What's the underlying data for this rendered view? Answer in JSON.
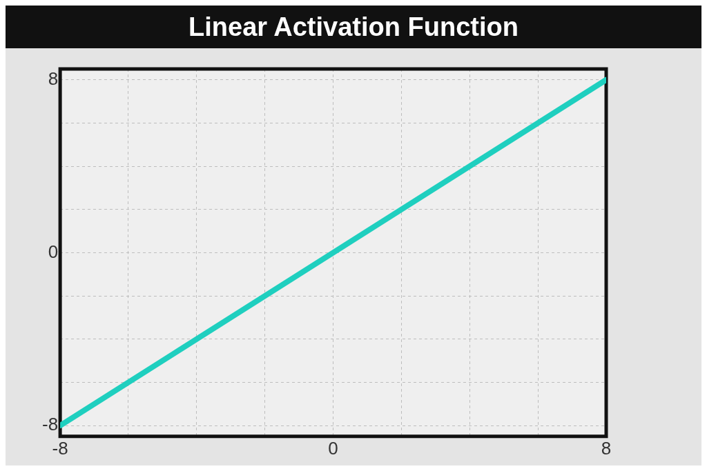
{
  "chart_data": {
    "type": "line",
    "title": "Linear Activation Function",
    "x": [
      -8,
      8
    ],
    "series": [
      {
        "color": "#1fcfbf",
        "values": [
          -8,
          8
        ]
      }
    ],
    "xlim": [
      -8,
      8
    ],
    "ylim": [
      -8.5,
      8.5
    ],
    "xticks": [
      -8,
      {
        "value": -6,
        "label": null
      },
      {
        "value": -4,
        "label": null
      },
      {
        "value": -2,
        "label": null
      },
      0,
      {
        "value": 2,
        "label": null
      },
      {
        "value": 4,
        "label": null
      },
      {
        "value": 6,
        "label": null
      },
      8
    ],
    "yticks": [
      -8,
      {
        "value": -6,
        "label": null
      },
      {
        "value": -4,
        "label": null
      },
      {
        "value": -2,
        "label": null
      },
      0,
      {
        "value": 2,
        "label": null
      },
      {
        "value": 4,
        "label": null
      },
      {
        "value": 6,
        "label": null
      },
      8
    ],
    "grid": true,
    "legend": false,
    "marker": "none",
    "line_style": "solid"
  }
}
